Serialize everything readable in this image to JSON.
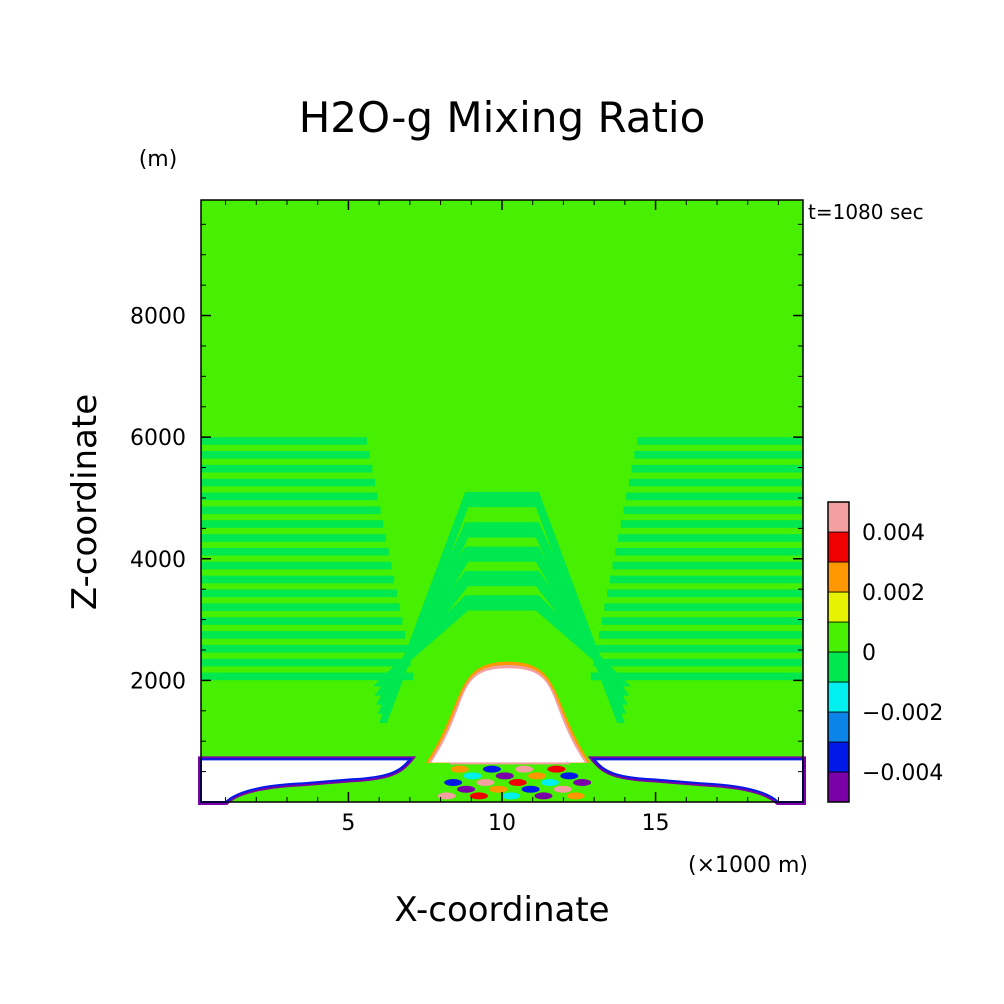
{
  "chart_data": {
    "type": "heatmap",
    "title": "H2O-g Mixing Ratio",
    "xlabel": "X-coordinate",
    "ylabel": "Z-coordinate",
    "y_unit": "(m)",
    "x_unit": "(×1000 m)",
    "time_label": "t=1080 sec",
    "xlim": [
      0.2,
      19.8
    ],
    "ylim": [
      0,
      9900
    ],
    "x_ticks": [
      5,
      10,
      15
    ],
    "x_tick_labels": [
      "5",
      "10",
      "15"
    ],
    "y_ticks": [
      2000,
      4000,
      6000,
      8000
    ],
    "y_tick_labels": [
      "2000",
      "4000",
      "6000",
      "8000"
    ],
    "grid": false,
    "colorbar": {
      "levels": [
        -0.005,
        -0.004,
        -0.003,
        -0.002,
        -0.001,
        0,
        0.001,
        0.002,
        0.003,
        0.004,
        0.005
      ],
      "colors": [
        "#7a00a8",
        "#0018e8",
        "#0a84e8",
        "#00f0f0",
        "#00e850",
        "#46f000",
        "#e6f200",
        "#ff9800",
        "#f00000",
        "#f4a0a0"
      ],
      "labels": [
        {
          "value": -0.004,
          "text": "−0.004"
        },
        {
          "value": -0.002,
          "text": "−0.002"
        },
        {
          "value": 0,
          "text": "0"
        },
        {
          "value": 0.002,
          "text": "0.002"
        },
        {
          "value": 0.004,
          "text": "0.004"
        }
      ]
    },
    "field": {
      "background_value": 0.0005,
      "stripe_value": -0.0005,
      "stripe_z_top": 6000,
      "stripe_z_bottom": 1900,
      "arch_tops": [
        5100,
        4600,
        4200,
        3800,
        3400
      ],
      "bubble": {
        "x_left": 7.7,
        "x_right": 12.7,
        "z_top": 2200,
        "z_base": 650
      },
      "no_data_layer": {
        "z_top": 700,
        "x_ranges": [
          [
            0.2,
            7.0
          ],
          [
            13.0,
            19.8
          ]
        ]
      }
    }
  }
}
